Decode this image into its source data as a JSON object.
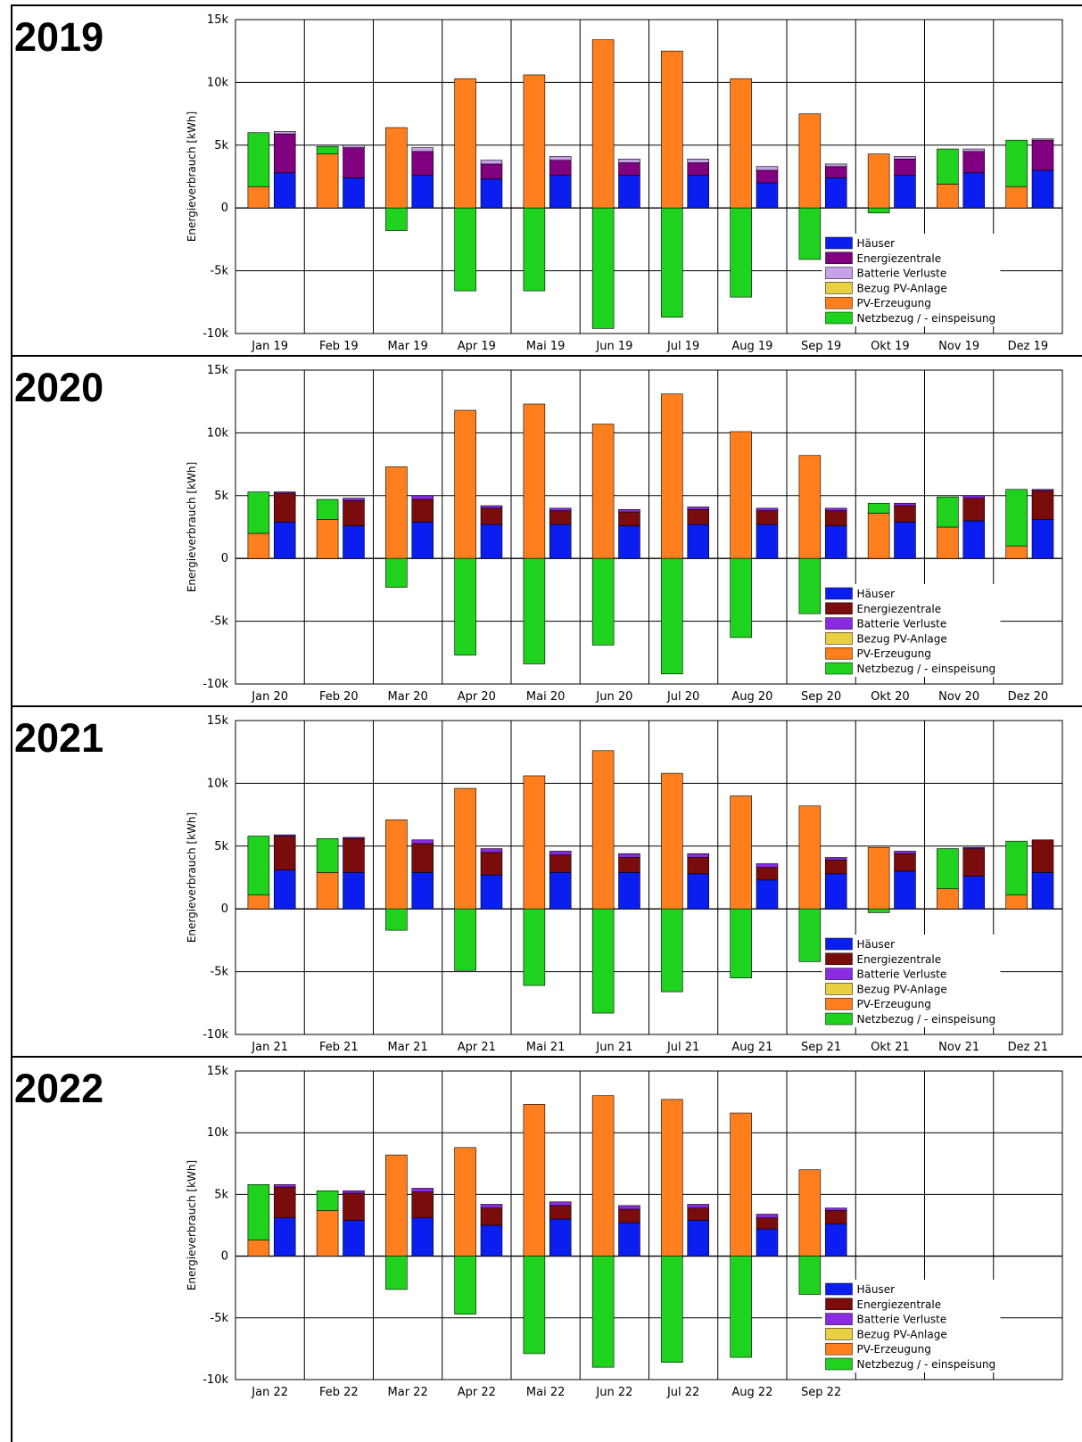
{
  "colors": {
    "haeuser": "#0a1ef0",
    "energiezentrale_2019": "#800080",
    "energiezentrale": "#7a0c0c",
    "batterie_2019": "#c8a0e8",
    "batterie": "#8a2be2",
    "bezug_pv": "#e8d040",
    "pv": "#ff7f1e",
    "netz": "#1ed21e",
    "grid": "#000000"
  },
  "chart_data": [
    {
      "type": "bar",
      "title": "2019",
      "ylabel": "Energieverbrauch  [kWh]",
      "ylim": [
        -10000,
        15000
      ],
      "yticks": [
        15000,
        10000,
        5000,
        0,
        -5000,
        -10000
      ],
      "ytick_labels": [
        "15k",
        "10k",
        "5k",
        "0",
        "-5k",
        "-10k"
      ],
      "categories": [
        "Jan 19",
        "Feb 19",
        "Mar 19",
        "Apr 19",
        "Mai 19",
        "Jun 19",
        "Jul 19",
        "Aug 19",
        "Sep 19",
        "Okt 19",
        "Nov 19",
        "Dez 19"
      ],
      "legend": [
        "Häuser",
        "Energiezentrale",
        "Batterie Verluste",
        "Bezug PV-Anlage",
        "PV-Erzeugung",
        "Netzbezug / - einspeisung"
      ],
      "legend_colors": [
        "haeuser",
        "energiezentrale_2019",
        "batterie_2019",
        "bezug_pv",
        "pv",
        "netz"
      ],
      "legend_placement": "bottom-right",
      "series": [
        {
          "name": "PV-Erzeugung",
          "values": [
            1700,
            4300,
            6400,
            10300,
            10600,
            13400,
            12500,
            10300,
            7500,
            4300,
            1900,
            1700
          ]
        },
        {
          "name": "Netzbezug / - einspeisung",
          "values": [
            4300,
            600,
            -1800,
            -6600,
            -6600,
            -9600,
            -8700,
            -7100,
            -4100,
            -400,
            2800,
            3700
          ]
        },
        {
          "name": "Häuser",
          "values": [
            2800,
            2400,
            2600,
            2300,
            2600,
            2600,
            2600,
            2000,
            2400,
            2600,
            2800,
            3000
          ]
        },
        {
          "name": "Energiezentrale",
          "values": [
            3100,
            2400,
            1900,
            1200,
            1200,
            1000,
            1000,
            1000,
            900,
            1300,
            1700,
            2400
          ]
        },
        {
          "name": "Batterie Verluste",
          "values": [
            200,
            200,
            300,
            300,
            300,
            300,
            300,
            300,
            200,
            200,
            200,
            100
          ]
        }
      ]
    },
    {
      "type": "bar",
      "title": "2020",
      "ylabel": "Energieverbrauch  [kWh]",
      "ylim": [
        -10000,
        15000
      ],
      "yticks": [
        15000,
        10000,
        5000,
        0,
        -5000,
        -10000
      ],
      "ytick_labels": [
        "15k",
        "10k",
        "5k",
        "0",
        "-5k",
        "-10k"
      ],
      "categories": [
        "Jan 20",
        "Feb 20",
        "Mar 20",
        "Apr 20",
        "Mai 20",
        "Jun 20",
        "Jul 20",
        "Aug 20",
        "Sep 20",
        "Okt 20",
        "Nov 20",
        "Dez 20"
      ],
      "legend": [
        "Häuser",
        "Energiezentrale",
        "Batterie Verluste",
        "Bezug PV-Anlage",
        "PV-Erzeugung",
        "Netzbezug / - einspeisung"
      ],
      "legend_colors": [
        "haeuser",
        "energiezentrale",
        "batterie",
        "bezug_pv",
        "pv",
        "netz"
      ],
      "legend_placement": "bottom-right",
      "series": [
        {
          "name": "PV-Erzeugung",
          "values": [
            2000,
            3100,
            7300,
            11800,
            12300,
            10700,
            13100,
            10100,
            8200,
            3600,
            2500,
            1000
          ]
        },
        {
          "name": "Netzbezug / - einspeisung",
          "values": [
            3300,
            1600,
            -2300,
            -7700,
            -8400,
            -6900,
            -9200,
            -6300,
            -4400,
            800,
            2400,
            4500
          ]
        },
        {
          "name": "Häuser",
          "values": [
            2900,
            2600,
            2900,
            2700,
            2700,
            2600,
            2700,
            2700,
            2600,
            2900,
            3000,
            3100
          ]
        },
        {
          "name": "Energiezentrale",
          "values": [
            2300,
            2000,
            1800,
            1300,
            1100,
            1100,
            1200,
            1100,
            1200,
            1300,
            1800,
            2300
          ]
        },
        {
          "name": "Batterie Verluste",
          "values": [
            100,
            200,
            300,
            200,
            200,
            200,
            200,
            200,
            200,
            200,
            200,
            100
          ]
        }
      ]
    },
    {
      "type": "bar",
      "title": "2021",
      "ylabel": "Energieverbrauch  [kWh]",
      "ylim": [
        -10000,
        15000
      ],
      "yticks": [
        15000,
        10000,
        5000,
        0,
        -5000,
        -10000
      ],
      "ytick_labels": [
        "15k",
        "10k",
        "5k",
        "0",
        "-5k",
        "-10k"
      ],
      "categories": [
        "Jan 21",
        "Feb 21",
        "Mar 21",
        "Apr 21",
        "Mai 21",
        "Jun 21",
        "Jul 21",
        "Aug 21",
        "Sep 21",
        "Okt 21",
        "Nov 21",
        "Dez 21"
      ],
      "legend": [
        "Häuser",
        "Energiezentrale",
        "Batterie Verluste",
        "Bezug PV-Anlage",
        "PV-Erzeugung",
        "Netzbezug / - einspeisung"
      ],
      "legend_colors": [
        "haeuser",
        "energiezentrale",
        "batterie",
        "bezug_pv",
        "pv",
        "netz"
      ],
      "legend_placement": "bottom-right",
      "series": [
        {
          "name": "PV-Erzeugung",
          "values": [
            1100,
            2900,
            7100,
            9600,
            10600,
            12600,
            10800,
            9000,
            8200,
            4900,
            1600,
            1100
          ]
        },
        {
          "name": "Netzbezug / - einspeisung",
          "values": [
            4700,
            2700,
            -1700,
            -4900,
            -6100,
            -8300,
            -6600,
            -5500,
            -4200,
            -300,
            3200,
            4300
          ]
        },
        {
          "name": "Häuser",
          "values": [
            3100,
            2900,
            2900,
            2700,
            2900,
            2900,
            2800,
            2300,
            2800,
            3000,
            2600,
            2900
          ]
        },
        {
          "name": "Energiezentrale",
          "values": [
            2700,
            2700,
            2300,
            1800,
            1400,
            1200,
            1300,
            1000,
            1100,
            1400,
            2200,
            2600
          ]
        },
        {
          "name": "Batterie Verluste",
          "values": [
            100,
            100,
            300,
            300,
            300,
            300,
            300,
            300,
            200,
            200,
            100,
            0
          ]
        }
      ]
    },
    {
      "type": "bar",
      "title": "2022",
      "ylabel": "Energieverbrauch  [kWh]",
      "ylim": [
        -10000,
        15000
      ],
      "yticks": [
        15000,
        10000,
        5000,
        0,
        -5000,
        -10000
      ],
      "ytick_labels": [
        "15k",
        "10k",
        "5k",
        "0",
        "-5k",
        "-10k"
      ],
      "categories": [
        "Jan 22",
        "Feb 22",
        "Mar 22",
        "Apr 22",
        "Mai 22",
        "Jun 22",
        "Jul 22",
        "Aug 22",
        "Sep 22",
        "",
        "",
        ""
      ],
      "legend": [
        "Häuser",
        "Energiezentrale",
        "Batterie Verluste",
        "Bezug PV-Anlage",
        "PV-Erzeugung",
        "Netzbezug / - einspeisung"
      ],
      "legend_colors": [
        "haeuser",
        "energiezentrale",
        "batterie",
        "bezug_pv",
        "pv",
        "netz"
      ],
      "legend_placement": "bottom-right",
      "series": [
        {
          "name": "PV-Erzeugung",
          "values": [
            1300,
            3700,
            8200,
            8800,
            12300,
            13000,
            12700,
            11600,
            7000,
            null,
            null,
            null
          ]
        },
        {
          "name": "Netzbezug / - einspeisung",
          "values": [
            4500,
            1600,
            -2700,
            -4700,
            -7900,
            -9000,
            -8600,
            -8200,
            -3100,
            null,
            null,
            null
          ]
        },
        {
          "name": "Häuser",
          "values": [
            3100,
            2900,
            3100,
            2500,
            3000,
            2700,
            2900,
            2200,
            2600,
            null,
            null,
            null
          ]
        },
        {
          "name": "Energiezentrale",
          "values": [
            2500,
            2200,
            2100,
            1400,
            1100,
            1100,
            1000,
            900,
            1100,
            null,
            null,
            null
          ]
        },
        {
          "name": "Batterie Verluste",
          "values": [
            200,
            200,
            300,
            300,
            300,
            300,
            300,
            300,
            200,
            null,
            null,
            null
          ]
        }
      ]
    }
  ]
}
